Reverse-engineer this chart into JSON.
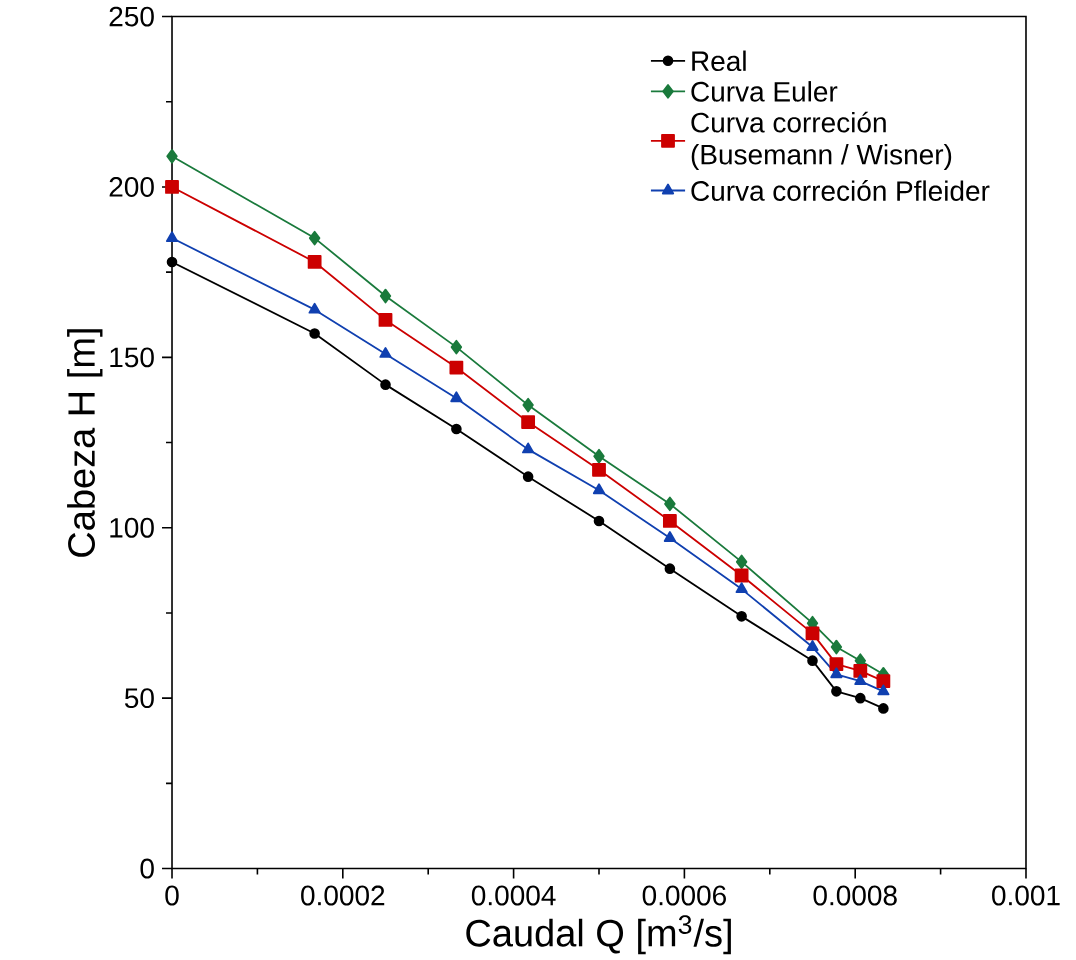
{
  "chart_data": {
    "type": "line",
    "xlabel": "Caudal Q [m$^{3}$/s]",
    "ylabel": "Cabeza H [m]",
    "x": [
      0,
      0.000167,
      0.00025,
      0.000333,
      0.000417,
      0.0005,
      0.000583,
      0.000667,
      0.00075,
      0.000778,
      0.000806,
      0.000833
    ],
    "series": [
      {
        "name": "Real",
        "color": "#000000",
        "marker": "circle",
        "values": [
          178,
          157,
          142,
          129,
          115,
          102,
          88,
          74,
          61,
          52,
          50,
          47
        ]
      },
      {
        "name": "Curva Euler",
        "color": "#1a7a3c",
        "marker": "diamond",
        "values": [
          209,
          185,
          168,
          153,
          136,
          121,
          107,
          90,
          72,
          65,
          61,
          57
        ]
      },
      {
        "name": "Curva correción (Busemann / Wisner)",
        "color": "#cc0000",
        "marker": "square",
        "values": [
          200,
          178,
          161,
          147,
          131,
          117,
          102,
          86,
          69,
          60,
          58,
          55
        ]
      },
      {
        "name": "Curva correción Pfleider",
        "color": "#1040b0",
        "marker": "triangle",
        "values": [
          185,
          164,
          151,
          138,
          123,
          111,
          97,
          82,
          65,
          57,
          55,
          52
        ]
      }
    ],
    "xlim": [
      0,
      0.001
    ],
    "ylim": [
      0,
      250
    ],
    "xticks": [
      0,
      0.0002,
      0.0004,
      0.0006,
      0.0008,
      0.001
    ],
    "yticks": [
      0,
      50,
      100,
      150,
      200,
      250
    ],
    "grid": false,
    "legend": "top right",
    "line_style": "solid"
  }
}
